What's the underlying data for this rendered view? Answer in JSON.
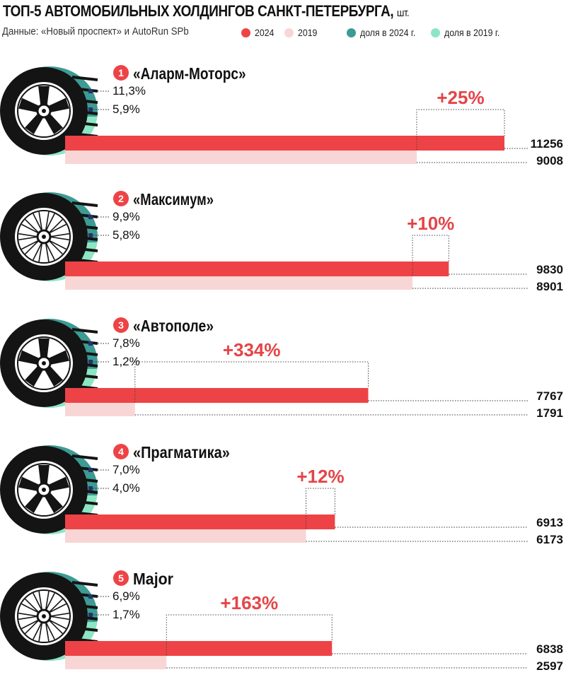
{
  "header": {
    "title": "ТОП-5 АВТОМОБИЛЬНЫХ ХОЛДИНГОВ САНКТ-ПЕТЕРБУРГА,",
    "unit": "шт.",
    "source": "Данные: «Новый проспект» и AutoRun SPb"
  },
  "legend": [
    {
      "label": "2024",
      "color": "#ee4346"
    },
    {
      "label": "2019",
      "color": "#f8d6d6"
    },
    {
      "label": "доля в 2024 г.",
      "color": "#3d9b93"
    },
    {
      "label": "доля в 2019 г.",
      "color": "#8ce6c3"
    }
  ],
  "colors": {
    "bar_2024": "#ee4346",
    "bar_2019": "#f8d6d6",
    "share_2024": "#3d9b93",
    "share_2019": "#8ce6c3",
    "badge": "#ee4346",
    "growth_text": "#e44548",
    "tire": "#141414"
  },
  "chart_data": {
    "type": "bar",
    "title": "ТОП-5 АВТОМОБИЛЬНЫХ ХОЛДИНГОВ САНКТ-ПЕТЕРБУРГА, шт.",
    "categories": [
      "«Аларм-Моторс»",
      "«Максимум»",
      "«Автополе»",
      "«Прагматика»",
      "Major"
    ],
    "ranks": [
      "1",
      "2",
      "3",
      "4",
      "5"
    ],
    "series": [
      {
        "name": "2024",
        "values": [
          11256,
          9830,
          7767,
          6913,
          6838
        ]
      },
      {
        "name": "2019",
        "values": [
          9008,
          8901,
          1791,
          6173,
          2597
        ]
      }
    ],
    "value_labels_2024": [
      "11256",
      "9830",
      "7767",
      "6913",
      "6838"
    ],
    "value_labels_2019": [
      "9008",
      "8901",
      "1791",
      "6173",
      "2597"
    ],
    "share_2024": [
      "11,3%",
      "9,9%",
      "7,8%",
      "7,0%",
      "6,9%"
    ],
    "share_2019": [
      "5,9%",
      "5,8%",
      "1,2%",
      "4,0%",
      "1,7%"
    ],
    "growth": [
      "+25%",
      "+10%",
      "+334%",
      "+12%",
      "+163%"
    ],
    "wheel_style": [
      "5-spoke",
      "multi-spoke",
      "5-spoke",
      "5-spoke",
      "multi-spoke"
    ]
  }
}
